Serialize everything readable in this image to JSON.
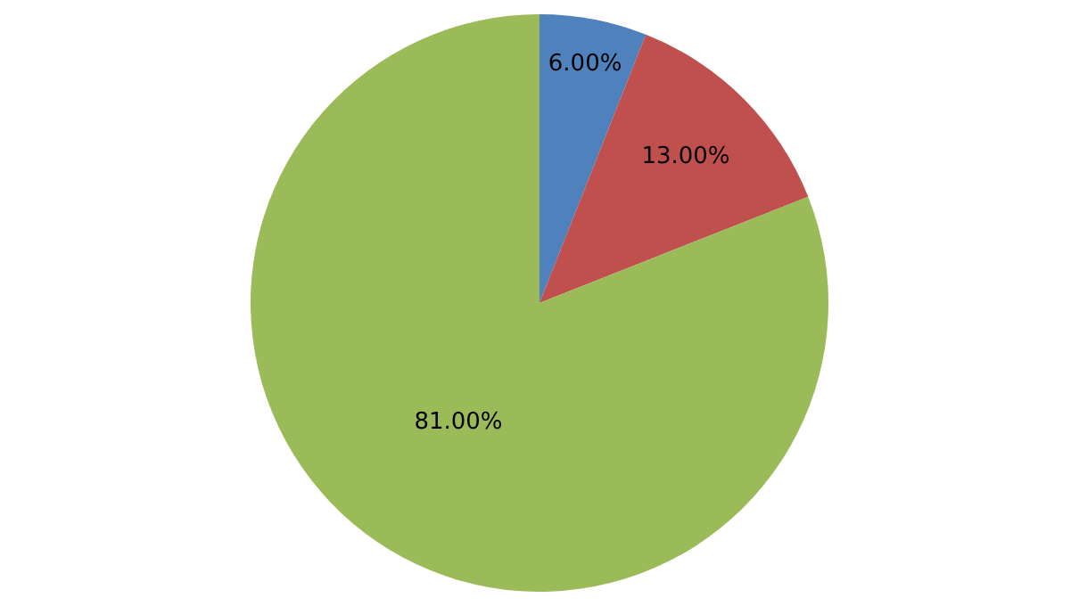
{
  "chart_data": {
    "type": "pie",
    "categories": [
      null,
      null,
      null
    ],
    "values": [
      6,
      13,
      81
    ],
    "colors": [
      "#4f81bd",
      "#c0504d",
      "#9bbb59"
    ],
    "value_labels": [
      "6.00%",
      "13.00%",
      "81.00%"
    ],
    "legend": false
  }
}
